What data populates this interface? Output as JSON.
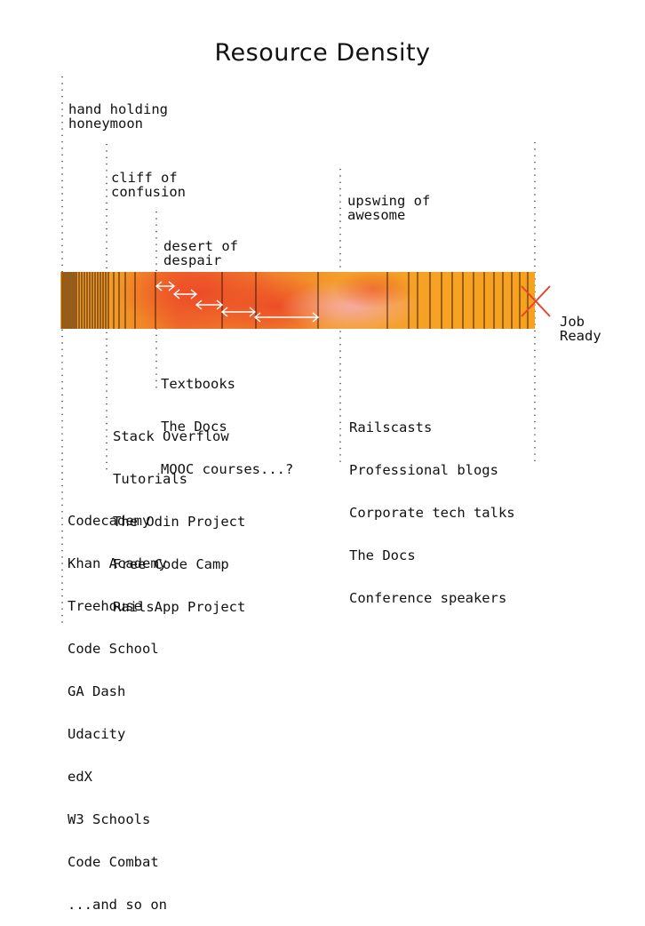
{
  "title": "Resource Density",
  "phases": {
    "honeymoon": [
      "hand holding",
      "honeymoon"
    ],
    "cliff": [
      "cliff of",
      "confusion"
    ],
    "desert": [
      "desert of",
      "despair"
    ],
    "upswing": [
      "upswing of",
      "awesome"
    ]
  },
  "end_label": [
    "Job",
    "Ready"
  ],
  "resources": {
    "desert": [
      "Textbooks",
      "The Docs",
      "MOOC courses...?"
    ],
    "cliff": [
      "Stack Overflow",
      "Tutorials",
      "The Odin Project",
      "Free Code Camp",
      "RailsApp Project"
    ],
    "upswing": [
      "Railscasts",
      "Professional blogs",
      "Corporate tech talks",
      "The Docs",
      "Conference speakers"
    ],
    "honeymoon": [
      "Codecademy",
      "Khan Academy",
      "Treehouse",
      "Code School",
      "GA Dash",
      "Udacity",
      "edX",
      "W3 Schools",
      "Code Combat",
      "...and so on"
    ]
  },
  "colors": {
    "orange": "#f7a21d",
    "red": "#ec4a28",
    "pink": "#f6a9a3",
    "marker": "#e8432e"
  }
}
